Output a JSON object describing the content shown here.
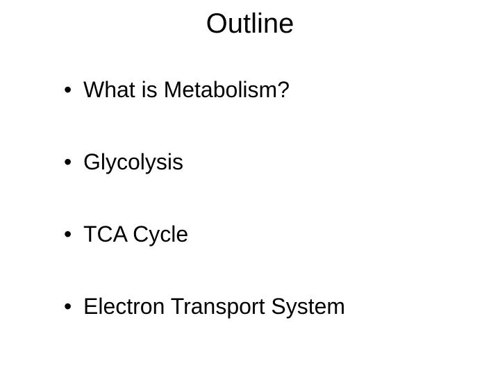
{
  "slide": {
    "title": "Outline",
    "title_fontsize": 40,
    "title_color": "#000000",
    "bullets": [
      "What is Metabolism?",
      "Glycolysis",
      "TCA Cycle",
      "Electron Transport System"
    ],
    "bullet_fontsize": 32,
    "bullet_color": "#000000",
    "background_color": "#ffffff",
    "font_family": "Arial"
  }
}
